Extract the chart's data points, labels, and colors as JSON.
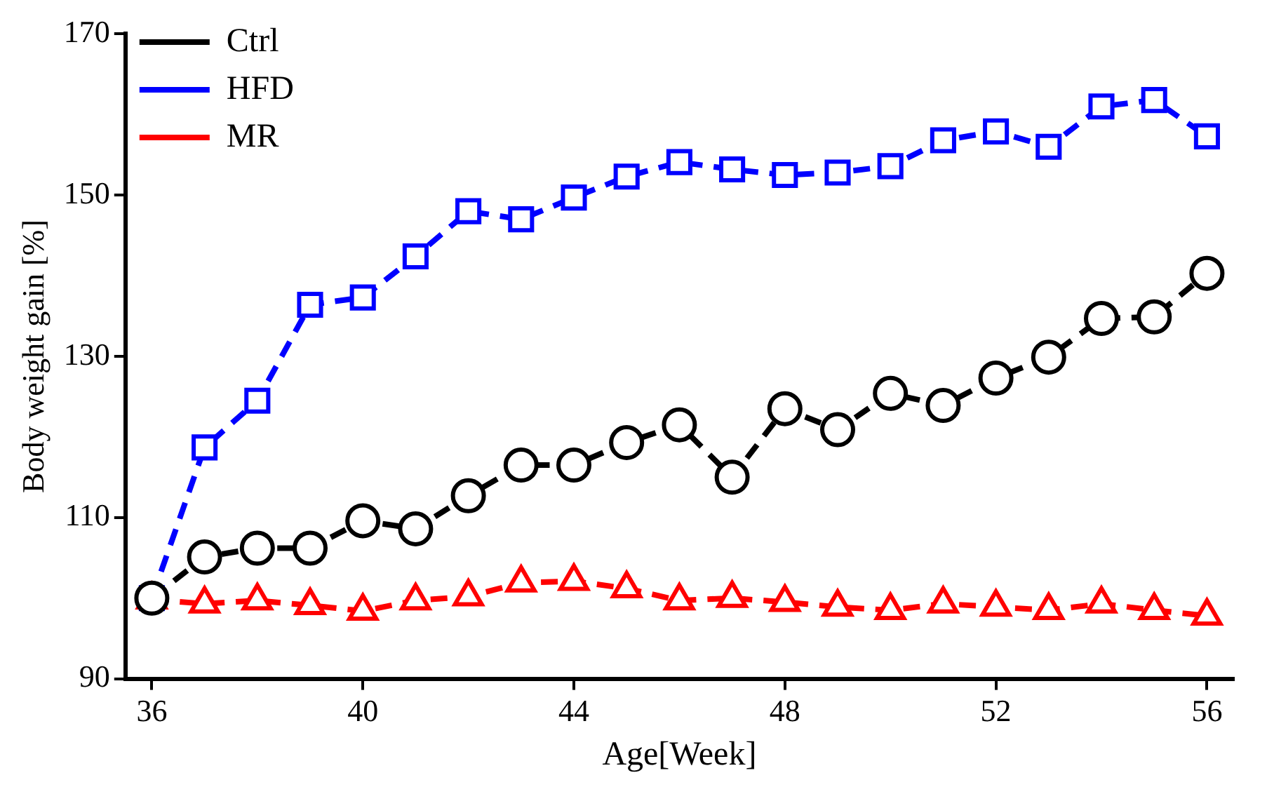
{
  "chart_data": {
    "type": "line",
    "xlabel": "Age[Week]",
    "ylabel": "Body weight gain [%]",
    "x": [
      36,
      37,
      38,
      39,
      40,
      41,
      42,
      43,
      44,
      45,
      46,
      47,
      48,
      49,
      50,
      51,
      52,
      53,
      54,
      55,
      56
    ],
    "xlim": [
      35.5,
      56.5
    ],
    "xticks": [
      36,
      40,
      44,
      48,
      52,
      56
    ],
    "ylim": [
      90,
      170
    ],
    "yticks": [
      90,
      110,
      130,
      150,
      170
    ],
    "grid": false,
    "legend": "top left",
    "line_style": "dashed",
    "series": [
      {
        "name": "Ctrl",
        "color": "#000000",
        "marker": "circle",
        "values": [
          100,
          105.1,
          106.2,
          106.2,
          109.6,
          108.6,
          112.7,
          116.5,
          116.5,
          119.3,
          121.5,
          115,
          123.5,
          120.9,
          125.4,
          123.9,
          127.3,
          129.9,
          134.7,
          134.9,
          140.3
        ]
      },
      {
        "name": "HFD",
        "color": "#0000ff",
        "marker": "square",
        "values": [
          100,
          118.7,
          124.5,
          136.4,
          137.3,
          142.4,
          148,
          147,
          149.7,
          152.3,
          154.1,
          153.2,
          152.5,
          152.8,
          153.6,
          156.8,
          157.9,
          156,
          161,
          161.8,
          157.3
        ]
      },
      {
        "name": "MR",
        "color": "#ff0000",
        "marker": "triangle",
        "values": [
          99.8,
          99.3,
          99.7,
          99.1,
          98.4,
          99.7,
          100.2,
          101.9,
          102.1,
          101.2,
          99.7,
          100,
          99.5,
          98.9,
          98.5,
          99.3,
          98.9,
          98.5,
          99.3,
          98.5,
          97.8
        ]
      }
    ]
  }
}
